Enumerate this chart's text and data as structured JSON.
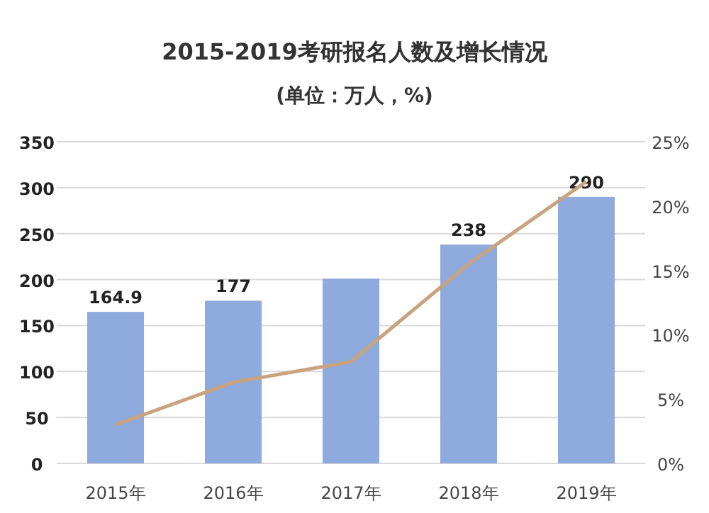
{
  "chart_data": {
    "type": "bar",
    "title": "2015-2019考研报名人数及增长情况",
    "subtitle": "(单位：万人，%)",
    "categories": [
      "2015年",
      "2016年",
      "2017年",
      "2018年",
      "2019年"
    ],
    "series": [
      {
        "color": "#8faadc",
        "values": [
          164.9,
          177,
          201,
          238,
          290
        ],
        "value_labels": [
          "164.9",
          "177",
          null,
          "238",
          "290"
        ]
      },
      {
        "type": "line",
        "axis": "y2",
        "color": "#c9a27e",
        "values": [
          3.0,
          6.3,
          7.9,
          15.5,
          21.9
        ]
      }
    ],
    "ylim": [
      0,
      350
    ],
    "yticks": [
      0,
      50,
      100,
      150,
      200,
      250,
      300,
      350
    ],
    "y2lim": [
      0,
      25
    ],
    "y2ticks": [
      {
        "value": 0,
        "label": "0%"
      },
      {
        "value": 5,
        "label": "5%"
      },
      {
        "value": 10,
        "label": "10%"
      },
      {
        "value": 15,
        "label": "15%"
      },
      {
        "value": 20,
        "label": "20%"
      },
      {
        "value": 25,
        "label": "25%"
      }
    ],
    "grid": "y"
  }
}
